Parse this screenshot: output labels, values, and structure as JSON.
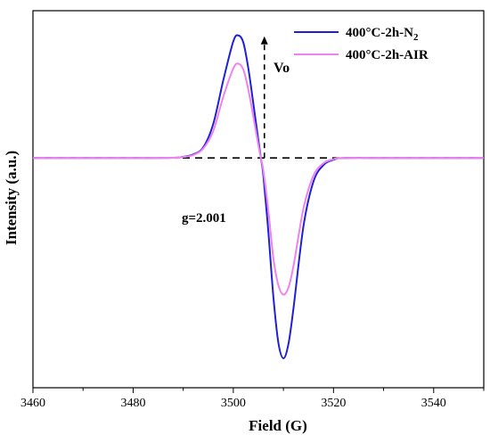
{
  "chart_data": {
    "type": "line",
    "xlabel": "Field (G)",
    "ylabel": "Intensity (a.u.)",
    "xlim": [
      3460,
      3550
    ],
    "x_ticks": [
      3460,
      3480,
      3500,
      3520,
      3540
    ],
    "y_ticks_labeled": false,
    "grid": false,
    "legend_position": "top-right",
    "series": [
      {
        "name": "400°C-2h-N",
        "name_subscript": "2",
        "color": "#1f1fd6",
        "x": [
          3460,
          3470,
          3480,
          3488,
          3490,
          3492,
          3494,
          3496,
          3498,
          3500,
          3501,
          3502,
          3503,
          3504,
          3505,
          3505.5,
          3506,
          3507,
          3508,
          3509,
          3510,
          3511,
          3512,
          3514,
          3516,
          3518,
          3520,
          3522,
          3530,
          3550
        ],
        "y": [
          0,
          0,
          0,
          0.2,
          1,
          3,
          9,
          29,
          66,
          99,
          104,
          98,
          76,
          46,
          15,
          0,
          -15,
          -63,
          -118,
          -157,
          -170,
          -158,
          -128,
          -58,
          -20,
          -6,
          -1.5,
          0,
          0,
          0
        ]
      },
      {
        "name": "400°C-2h-AIR",
        "color": "#ee82ee",
        "x": [
          3460,
          3470,
          3480,
          3488,
          3490,
          3492,
          3494,
          3496,
          3498,
          3500,
          3501,
          3502,
          3503,
          3504,
          3505,
          3505.5,
          3506,
          3507,
          3508,
          3509,
          3510,
          3511,
          3512,
          3514,
          3516,
          3518,
          3520,
          3522,
          3530,
          3550
        ],
        "y": [
          0,
          0,
          0,
          0.15,
          0.8,
          2.5,
          8,
          23,
          52,
          76,
          80,
          75,
          58,
          35,
          11,
          0,
          -11,
          -45,
          -85,
          -108,
          -116,
          -110,
          -92,
          -43,
          -15,
          -4.5,
          -1,
          0,
          0,
          0
        ]
      }
    ],
    "annotations": {
      "g_label": "g=2.001",
      "arrow_label": "Vo"
    }
  }
}
